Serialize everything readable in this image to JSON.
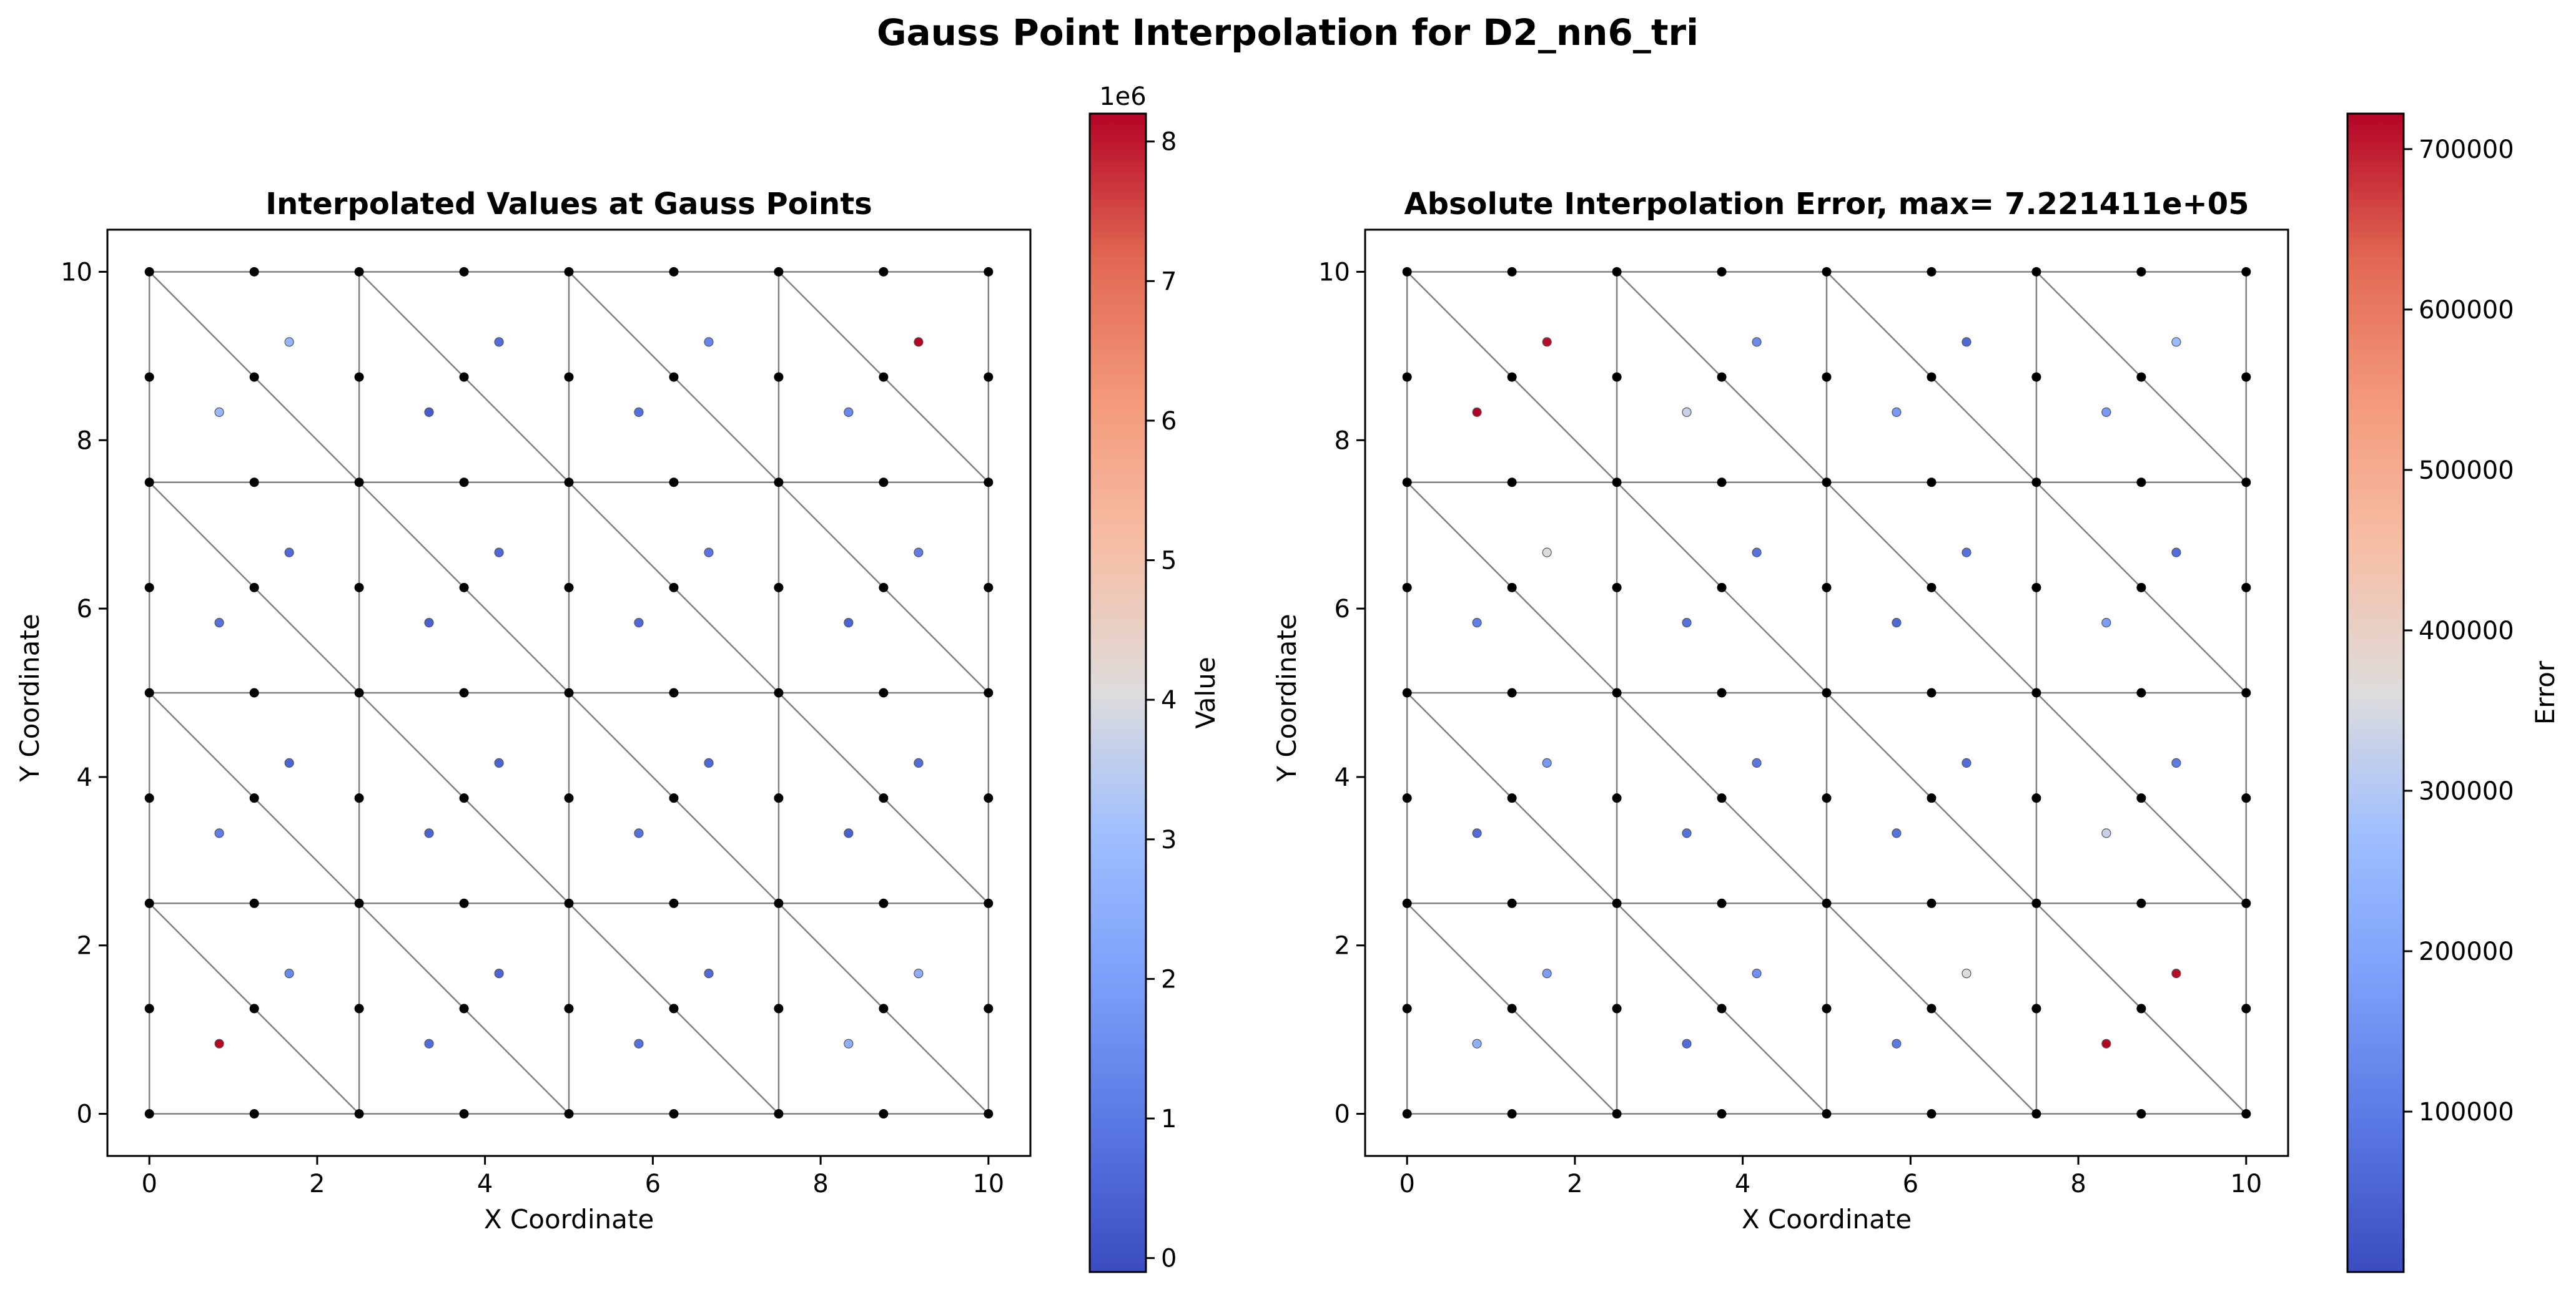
{
  "figure": {
    "title": "Gauss Point Interpolation for D2_nn6_tri"
  },
  "chart_data": [
    {
      "type": "scatter",
      "title": "Interpolated Values at Gauss Points",
      "xlabel": "X Coordinate",
      "ylabel": "Y Coordinate",
      "xlim": [
        -0.5,
        10.5
      ],
      "ylim": [
        -0.5,
        10.5
      ],
      "xticks": [
        "0",
        "2",
        "4",
        "6",
        "8",
        "10"
      ],
      "yticks": [
        "0",
        "2",
        "4",
        "6",
        "8",
        "10"
      ],
      "mesh": {
        "element_type": "6-node triangle",
        "grid": "4x4 quads split into triangles",
        "x_extent": [
          0,
          10
        ],
        "y_extent": [
          0,
          10
        ]
      },
      "colorbar": {
        "label": "Value",
        "offset_text": "1e6",
        "range": [
          -0.1,
          8.2
        ],
        "ticks": [
          "0",
          "1",
          "2",
          "3",
          "4",
          "5",
          "6",
          "7",
          "8"
        ],
        "colormap": "coolwarm"
      },
      "gauss_points": [
        {
          "x": 0.833,
          "y": 8.333,
          "v": 2.8
        },
        {
          "x": 1.667,
          "y": 9.167,
          "v": 2.7
        },
        {
          "x": 3.333,
          "y": 8.333,
          "v": 0.3
        },
        {
          "x": 4.167,
          "y": 9.167,
          "v": 0.7
        },
        {
          "x": 5.833,
          "y": 8.333,
          "v": 0.8
        },
        {
          "x": 6.667,
          "y": 9.167,
          "v": 1.3
        },
        {
          "x": 8.333,
          "y": 8.333,
          "v": 1.4
        },
        {
          "x": 9.167,
          "y": 9.167,
          "v": 8.2
        },
        {
          "x": 0.833,
          "y": 5.833,
          "v": 0.8
        },
        {
          "x": 1.667,
          "y": 6.667,
          "v": 0.6
        },
        {
          "x": 3.333,
          "y": 5.833,
          "v": 0.4
        },
        {
          "x": 4.167,
          "y": 6.667,
          "v": 0.6
        },
        {
          "x": 5.833,
          "y": 5.833,
          "v": 0.6
        },
        {
          "x": 6.667,
          "y": 6.667,
          "v": 0.9
        },
        {
          "x": 8.333,
          "y": 5.833,
          "v": 0.5
        },
        {
          "x": 9.167,
          "y": 6.667,
          "v": 1.1
        },
        {
          "x": 0.833,
          "y": 3.333,
          "v": 1.1
        },
        {
          "x": 1.667,
          "y": 4.167,
          "v": 0.5
        },
        {
          "x": 3.333,
          "y": 3.333,
          "v": 0.5
        },
        {
          "x": 4.167,
          "y": 4.167,
          "v": 0.5
        },
        {
          "x": 5.833,
          "y": 3.333,
          "v": 0.8
        },
        {
          "x": 6.667,
          "y": 4.167,
          "v": 0.6
        },
        {
          "x": 8.333,
          "y": 3.333,
          "v": 0.4
        },
        {
          "x": 9.167,
          "y": 4.167,
          "v": 0.7
        },
        {
          "x": 0.833,
          "y": 0.833,
          "v": 8.2
        },
        {
          "x": 1.667,
          "y": 1.667,
          "v": 1.4
        },
        {
          "x": 3.333,
          "y": 0.833,
          "v": 0.7
        },
        {
          "x": 4.167,
          "y": 1.667,
          "v": 0.5
        },
        {
          "x": 5.833,
          "y": 0.833,
          "v": 0.8
        },
        {
          "x": 6.667,
          "y": 1.667,
          "v": 0.6
        },
        {
          "x": 8.333,
          "y": 0.833,
          "v": 2.5
        },
        {
          "x": 9.167,
          "y": 1.667,
          "v": 2.5
        }
      ]
    },
    {
      "type": "scatter",
      "title": "Absolute Interpolation Error, max= 7.221411e+05",
      "xlabel": "X Coordinate",
      "ylabel": "Y Coordinate",
      "xlim": [
        -0.5,
        10.5
      ],
      "ylim": [
        -0.5,
        10.5
      ],
      "xticks": [
        "0",
        "2",
        "4",
        "6",
        "8",
        "10"
      ],
      "yticks": [
        "0",
        "2",
        "4",
        "6",
        "8",
        "10"
      ],
      "mesh": {
        "element_type": "6-node triangle",
        "grid": "4x4 quads split into triangles",
        "x_extent": [
          0,
          10
        ],
        "y_extent": [
          0,
          10
        ]
      },
      "colorbar": {
        "label": "Error",
        "offset_text": "",
        "range": [
          0,
          722141
        ],
        "ticks": [
          "100000",
          "200000",
          "300000",
          "400000",
          "500000",
          "600000",
          "700000"
        ],
        "tick_values": [
          100000,
          200000,
          300000,
          400000,
          500000,
          600000,
          700000
        ],
        "colormap": "coolwarm"
      },
      "gauss_points": [
        {
          "x": 0.833,
          "y": 8.333,
          "v": 722141
        },
        {
          "x": 1.667,
          "y": 9.167,
          "v": 715000
        },
        {
          "x": 3.333,
          "y": 8.333,
          "v": 330000
        },
        {
          "x": 4.167,
          "y": 9.167,
          "v": 130000
        },
        {
          "x": 5.833,
          "y": 8.333,
          "v": 170000
        },
        {
          "x": 6.667,
          "y": 9.167,
          "v": 60000
        },
        {
          "x": 8.333,
          "y": 8.333,
          "v": 170000
        },
        {
          "x": 9.167,
          "y": 9.167,
          "v": 260000
        },
        {
          "x": 0.833,
          "y": 5.833,
          "v": 110000
        },
        {
          "x": 1.667,
          "y": 6.667,
          "v": 360000
        },
        {
          "x": 3.333,
          "y": 5.833,
          "v": 80000
        },
        {
          "x": 4.167,
          "y": 6.667,
          "v": 80000
        },
        {
          "x": 5.833,
          "y": 5.833,
          "v": 60000
        },
        {
          "x": 6.667,
          "y": 6.667,
          "v": 80000
        },
        {
          "x": 8.333,
          "y": 5.833,
          "v": 180000
        },
        {
          "x": 9.167,
          "y": 6.667,
          "v": 70000
        },
        {
          "x": 0.833,
          "y": 3.333,
          "v": 70000
        },
        {
          "x": 1.667,
          "y": 4.167,
          "v": 170000
        },
        {
          "x": 3.333,
          "y": 3.333,
          "v": 80000
        },
        {
          "x": 4.167,
          "y": 4.167,
          "v": 90000
        },
        {
          "x": 5.833,
          "y": 3.333,
          "v": 80000
        },
        {
          "x": 6.667,
          "y": 4.167,
          "v": 70000
        },
        {
          "x": 8.333,
          "y": 3.333,
          "v": 330000
        },
        {
          "x": 9.167,
          "y": 4.167,
          "v": 100000
        },
        {
          "x": 0.833,
          "y": 0.833,
          "v": 230000
        },
        {
          "x": 1.667,
          "y": 1.667,
          "v": 180000
        },
        {
          "x": 3.333,
          "y": 0.833,
          "v": 70000
        },
        {
          "x": 4.167,
          "y": 1.667,
          "v": 150000
        },
        {
          "x": 5.833,
          "y": 0.833,
          "v": 100000
        },
        {
          "x": 6.667,
          "y": 1.667,
          "v": 360000
        },
        {
          "x": 8.333,
          "y": 0.833,
          "v": 722000
        },
        {
          "x": 9.167,
          "y": 1.667,
          "v": 715000
        }
      ]
    }
  ]
}
